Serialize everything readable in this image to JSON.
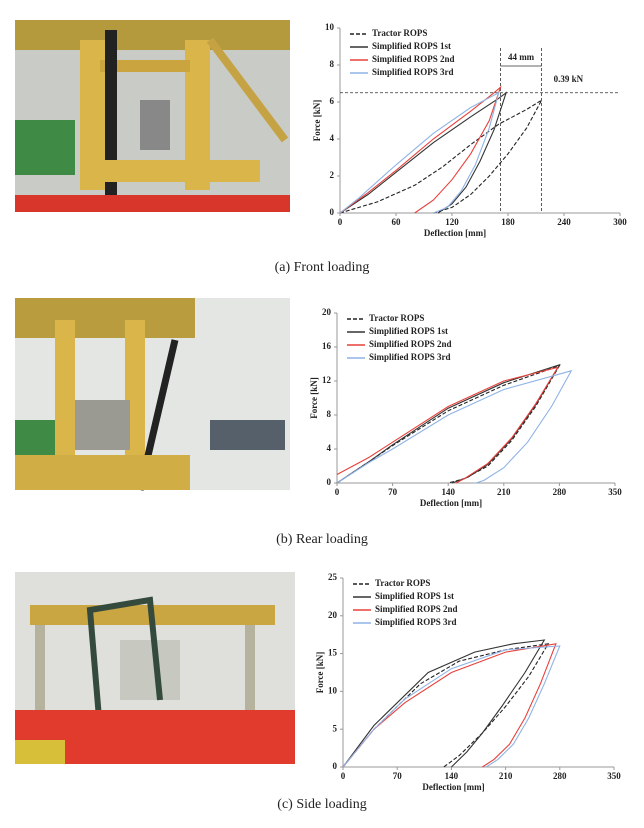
{
  "chart_data": [
    {
      "type": "line",
      "caption": "(a) Front loading",
      "ylabel": "Force [kN]",
      "xlabel": "Deflection [mm]",
      "xlim": [
        0,
        300
      ],
      "xticks": [
        0,
        60,
        120,
        180,
        240,
        300
      ],
      "ylim": [
        0,
        10
      ],
      "yticks": [
        0,
        2,
        4,
        6,
        8,
        10
      ],
      "hlines": [
        6.5
      ],
      "vlines": [
        172,
        216
      ],
      "annotations": [
        "44 mm",
        "0.39 kN"
      ],
      "legend": "upper-left",
      "series": [
        {
          "name": "Tractor ROPS",
          "color": "#222222",
          "dash": true,
          "x": [
            0,
            40,
            80,
            110,
            140,
            170,
            200,
            216,
            200,
            180,
            160,
            140,
            120,
            100
          ],
          "values": [
            0,
            0.6,
            1.5,
            2.5,
            3.7,
            4.8,
            5.6,
            6.1,
            4.6,
            3.2,
            2,
            1,
            0.3,
            0
          ]
        },
        {
          "name": "Simplified ROPS 1st",
          "color": "#333333",
          "dash": false,
          "x": [
            0,
            30,
            60,
            100,
            140,
            170,
            178,
            165,
            150,
            135,
            120,
            105
          ],
          "values": [
            0,
            1,
            2.2,
            3.8,
            5.2,
            6.2,
            6.5,
            4.5,
            2.8,
            1.4,
            0.5,
            0
          ]
        },
        {
          "name": "Simplified ROPS 2nd",
          "color": "#e8403a",
          "dash": false,
          "x": [
            0,
            30,
            60,
            100,
            140,
            165,
            172,
            160,
            140,
            120,
            100,
            80
          ],
          "values": [
            0,
            1.1,
            2.3,
            4,
            5.5,
            6.5,
            6.8,
            5,
            3.2,
            1.8,
            0.7,
            0
          ]
        },
        {
          "name": "Simplified ROPS 3rd",
          "color": "#8fb3e6",
          "dash": false,
          "x": [
            0,
            20,
            60,
            100,
            140,
            170,
            160,
            145,
            130,
            115,
            100
          ],
          "values": [
            0,
            0.8,
            2.6,
            4.3,
            5.7,
            6.5,
            4.6,
            2.6,
            1.2,
            0.3,
            0
          ]
        }
      ]
    },
    {
      "type": "line",
      "caption": "(b) Rear loading",
      "ylabel": "Force [kN]",
      "xlabel": "Deflection [mm]",
      "xlim": [
        0,
        350
      ],
      "xticks": [
        0,
        70,
        140,
        210,
        280,
        350
      ],
      "ylim": [
        0,
        20
      ],
      "yticks": [
        0,
        4,
        8,
        12,
        16,
        20
      ],
      "legend": "upper-left",
      "series": [
        {
          "name": "Tractor ROPS",
          "color": "#222222",
          "dash": true,
          "x": [
            0,
            40,
            70,
            140,
            210,
            280,
            250,
            220,
            190,
            160,
            140
          ],
          "values": [
            0,
            2.5,
            4.4,
            8.5,
            11.5,
            13.8,
            9,
            5,
            2,
            0.5,
            0
          ]
        },
        {
          "name": "Simplified ROPS 1st",
          "color": "#333333",
          "dash": false,
          "x": [
            0,
            40,
            70,
            140,
            210,
            280,
            250,
            220,
            190,
            165,
            145
          ],
          "values": [
            0,
            2.5,
            4.5,
            8.8,
            11.8,
            13.9,
            9.2,
            5.2,
            2.2,
            0.7,
            0
          ]
        },
        {
          "name": "Simplified ROPS 2nd",
          "color": "#e8403a",
          "dash": false,
          "x": [
            0,
            40,
            70,
            140,
            210,
            278,
            250,
            220,
            190,
            160,
            150
          ],
          "values": [
            1,
            3,
            4.8,
            9,
            12,
            13.6,
            9.3,
            5.3,
            2.3,
            0.5,
            0
          ]
        },
        {
          "name": "Simplified ROPS 3rd",
          "color": "#8fb3e6",
          "dash": false,
          "x": [
            0,
            40,
            70,
            140,
            210,
            295,
            270,
            240,
            210,
            185,
            175
          ],
          "values": [
            0,
            2.4,
            4,
            8,
            11,
            13.2,
            9,
            4.8,
            1.8,
            0.3,
            0
          ]
        }
      ]
    },
    {
      "type": "line",
      "caption": "(c) Side loading",
      "ylabel": "Force [kN]",
      "xlabel": "Deflection [mm]",
      "xlim": [
        0,
        350
      ],
      "xticks": [
        0,
        70,
        140,
        210,
        280,
        350
      ],
      "ylim": [
        0,
        25
      ],
      "yticks": [
        0,
        5,
        10,
        15,
        20,
        25
      ],
      "legend": "upper-left",
      "series": [
        {
          "name": "Tractor ROPS",
          "color": "#222222",
          "dash": true,
          "x": [
            0,
            40,
            100,
            150,
            210,
            265,
            240,
            210,
            180,
            150,
            130
          ],
          "values": [
            0,
            5,
            11,
            14,
            15.5,
            16.3,
            12,
            8,
            4.5,
            1.5,
            0
          ]
        },
        {
          "name": "Simplified ROPS 1st",
          "color": "#333333",
          "dash": false,
          "x": [
            0,
            40,
            110,
            170,
            220,
            260,
            235,
            205,
            180,
            160,
            140
          ],
          "values": [
            0,
            5.5,
            12.5,
            15.2,
            16.3,
            16.8,
            12.5,
            8,
            4.5,
            2,
            0
          ]
        },
        {
          "name": "Simplified ROPS 2nd",
          "color": "#e8403a",
          "dash": false,
          "x": [
            0,
            40,
            80,
            140,
            210,
            275,
            255,
            235,
            215,
            195,
            180
          ],
          "values": [
            0,
            5,
            8.5,
            12.5,
            15.2,
            16.3,
            11,
            6.5,
            3,
            1,
            0
          ]
        },
        {
          "name": "Simplified ROPS 3rd",
          "color": "#8fb3e6",
          "dash": false,
          "x": [
            0,
            40,
            80,
            140,
            210,
            280,
            260,
            240,
            220,
            200,
            185
          ],
          "values": [
            0,
            5,
            9,
            13,
            15.5,
            16,
            11,
            6.5,
            3,
            1,
            0
          ]
        }
      ]
    }
  ]
}
